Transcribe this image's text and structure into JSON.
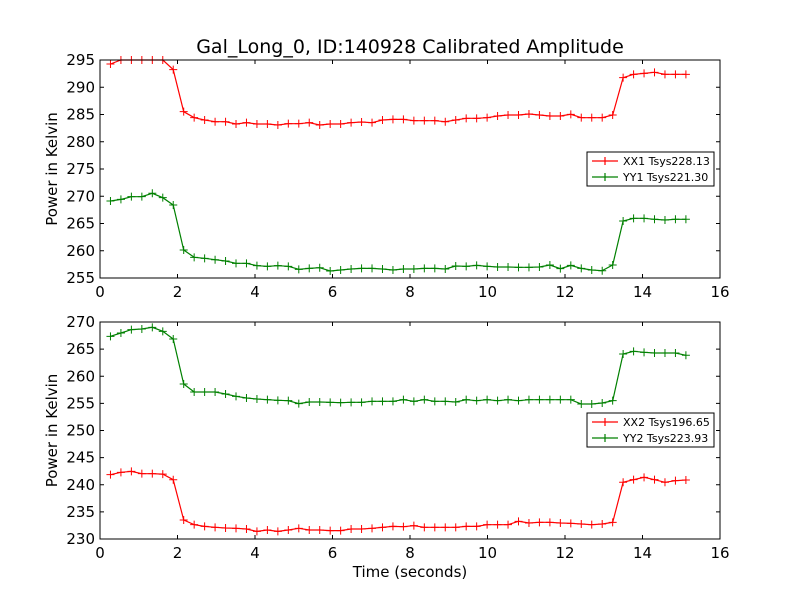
{
  "chart_data": {
    "type": "line",
    "title": "Gal_Long_0, ID:140928 Calibrated Amplitude",
    "x_start": 0.27,
    "x_step": 0.27,
    "panels": [
      {
        "ylabel": "Power in Kelvin",
        "xlabel": "",
        "xlim": [
          0,
          16
        ],
        "ylim": [
          255,
          295
        ],
        "xticks": [
          0,
          2,
          4,
          6,
          8,
          10,
          12,
          14,
          16
        ],
        "yticks": [
          255,
          260,
          265,
          270,
          275,
          280,
          285,
          290,
          295
        ],
        "legend_position": "center-right",
        "series": [
          {
            "name": "XX1 Tsys228.13",
            "color": "#ff0000",
            "values": [
              294.27,
              295.0,
              295.0,
              295.0,
              295.0,
              295.0,
              293.23,
              285.52,
              284.42,
              283.99,
              283.68,
              283.68,
              283.26,
              283.5,
              283.26,
              283.26,
              283.07,
              283.32,
              283.32,
              283.5,
              283.07,
              283.26,
              283.26,
              283.5,
              283.62,
              283.5,
              283.99,
              284.11,
              284.11,
              283.87,
              283.87,
              283.87,
              283.68,
              283.99,
              284.3,
              284.3,
              284.42,
              284.72,
              284.91,
              284.91,
              285.09,
              284.91,
              284.72,
              284.72,
              285.03,
              284.42,
              284.42,
              284.42,
              284.91,
              291.76,
              292.37,
              292.55,
              292.74,
              292.37,
              292.37,
              292.37
            ]
          },
          {
            "name": "YY1 Tsys221.30",
            "color": "#008000",
            "values": [
              269.13,
              269.43,
              269.92,
              269.92,
              270.54,
              269.74,
              268.39,
              260.14,
              258.79,
              258.61,
              258.36,
              258.12,
              257.69,
              257.69,
              257.26,
              257.14,
              257.26,
              257.14,
              256.59,
              256.77,
              256.89,
              256.28,
              256.47,
              256.65,
              256.77,
              256.77,
              256.65,
              256.47,
              256.65,
              256.65,
              256.77,
              256.77,
              256.65,
              257.2,
              257.14,
              257.32,
              257.14,
              257.02,
              257.02,
              256.96,
              256.96,
              257.02,
              257.39,
              256.71,
              257.32,
              256.77,
              256.47,
              256.34,
              257.39,
              265.46,
              265.95,
              265.95,
              265.77,
              265.64,
              265.77,
              265.77
            ]
          }
        ]
      },
      {
        "ylabel": "Power in Kelvin",
        "xlabel": "Time (seconds)",
        "xlim": [
          0,
          16
        ],
        "ylim": [
          230,
          270
        ],
        "xticks": [
          0,
          2,
          4,
          6,
          8,
          10,
          12,
          14,
          16
        ],
        "yticks": [
          230,
          235,
          240,
          245,
          250,
          255,
          260,
          265,
          270
        ],
        "legend_position": "center-right",
        "series": [
          {
            "name": "XX2 Tsys196.65",
            "color": "#ff0000",
            "values": [
              241.86,
              242.29,
              242.47,
              242.04,
              242.04,
              241.97,
              240.93,
              233.5,
              232.64,
              232.33,
              232.15,
              232.03,
              231.97,
              231.84,
              231.41,
              231.66,
              231.41,
              231.66,
              231.97,
              231.66,
              231.66,
              231.54,
              231.54,
              231.84,
              231.84,
              231.97,
              232.15,
              232.33,
              232.27,
              232.46,
              232.15,
              232.15,
              232.15,
              232.15,
              232.33,
              232.33,
              232.64,
              232.64,
              232.64,
              233.26,
              232.95,
              233.07,
              233.07,
              232.95,
              232.89,
              232.76,
              232.64,
              232.76,
              233.07,
              240.45,
              240.94,
              241.37,
              240.94,
              240.45,
              240.75,
              240.88
            ]
          },
          {
            "name": "YY2 Tsys223.93",
            "color": "#008000",
            "values": [
              267.36,
              267.97,
              268.59,
              268.71,
              269.02,
              268.28,
              266.87,
              258.57,
              257.1,
              257.1,
              257.1,
              256.73,
              256.3,
              255.99,
              255.81,
              255.68,
              255.56,
              255.5,
              254.95,
              255.25,
              255.25,
              255.19,
              255.13,
              255.19,
              255.19,
              255.38,
              255.38,
              255.38,
              255.68,
              255.38,
              255.68,
              255.38,
              255.38,
              255.25,
              255.68,
              255.5,
              255.68,
              255.5,
              255.68,
              255.5,
              255.68,
              255.68,
              255.68,
              255.68,
              255.68,
              254.88,
              254.88,
              255.07,
              255.5,
              264.1,
              264.59,
              264.41,
              264.29,
              264.29,
              264.29,
              263.86
            ]
          }
        ]
      }
    ]
  }
}
